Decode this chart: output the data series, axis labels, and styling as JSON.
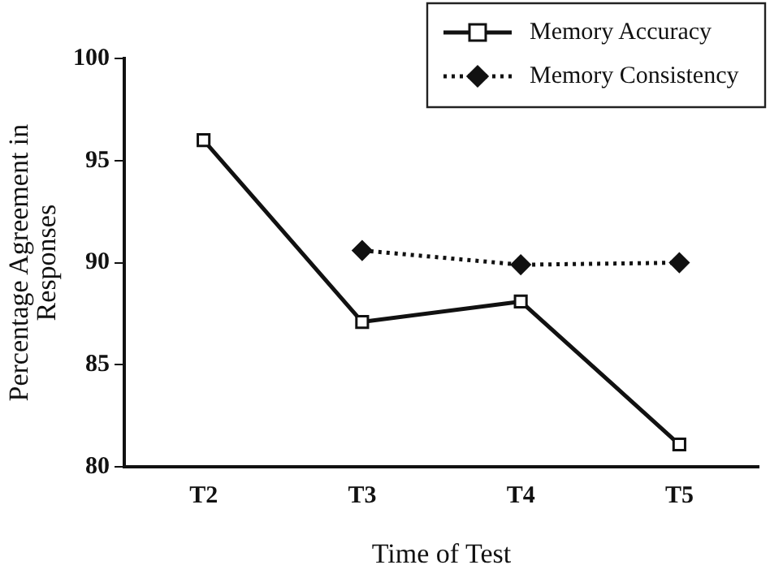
{
  "chart_data": {
    "type": "line",
    "categories": [
      "T2",
      "T3",
      "T4",
      "T5"
    ],
    "xlabel": "Time of Test",
    "ylabel": "Percentage Agreement in\nResponses",
    "series": [
      {
        "name": "Memory Accuracy",
        "color": "#111111",
        "marker": "square",
        "line_style": "solid",
        "values": [
          96,
          87.1,
          88.1,
          81.1
        ]
      },
      {
        "name": "Memory Consistency",
        "color": "#111111",
        "marker": "diamond",
        "line_style": "dotted",
        "values": [
          null,
          90.6,
          89.9,
          90.0
        ]
      }
    ],
    "ylim": [
      80,
      100
    ],
    "yticks": [
      80,
      85,
      90,
      95,
      100
    ],
    "grid": false,
    "legend": "top right"
  }
}
